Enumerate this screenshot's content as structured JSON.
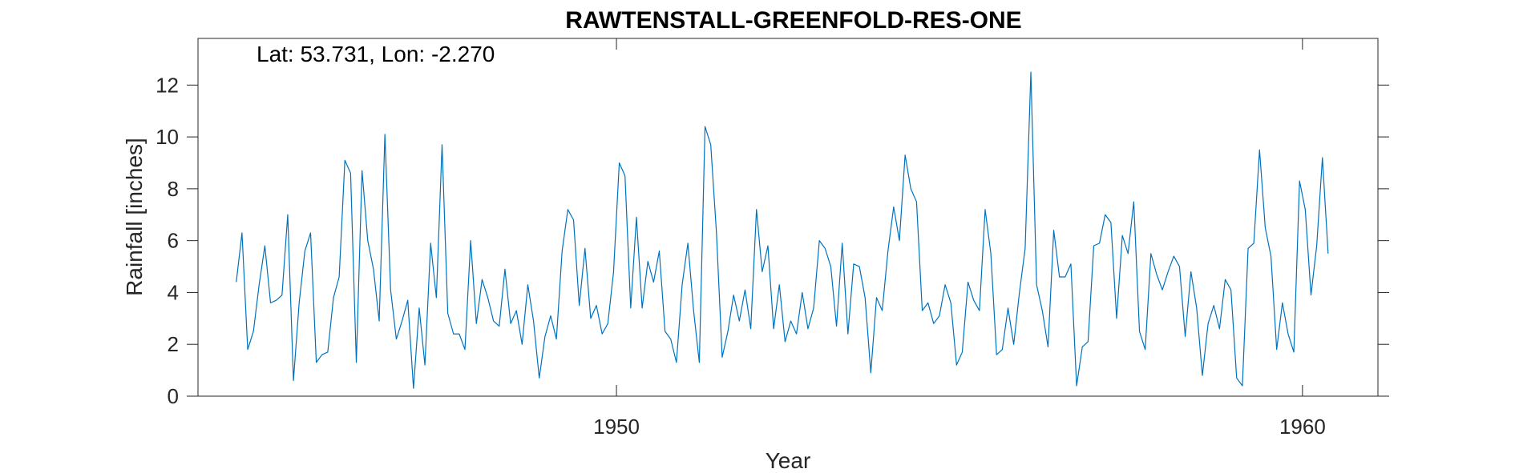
{
  "chart_data": {
    "type": "line",
    "title": "RAWTENSTALL-GREENFOLD-RES-ONE",
    "annotation": "Lat: 53.731, Lon: -2.270",
    "xlabel": "Year",
    "ylabel": "Rainfall [inches]",
    "xlim": [
      1943.9,
      1961.1
    ],
    "ylim": [
      0,
      13.8
    ],
    "x_ticks": [
      1950,
      1960
    ],
    "x_tick_labels": [
      "1950",
      "1960"
    ],
    "y_ticks": [
      0,
      2,
      4,
      6,
      8,
      10,
      12
    ],
    "y_tick_labels": [
      "0",
      "2",
      "4",
      "6",
      "8",
      "10",
      "12"
    ],
    "grid": false,
    "series": [
      {
        "color": "#0072BD",
        "x_start": 1944.458,
        "x_step": 0.08333,
        "values": [
          4.4,
          6.3,
          1.8,
          2.5,
          4.3,
          5.8,
          3.6,
          3.7,
          3.9,
          7.0,
          0.6,
          3.6,
          5.6,
          6.3,
          1.3,
          1.6,
          1.7,
          3.8,
          4.6,
          9.1,
          8.6,
          1.3,
          8.7,
          6.0,
          4.9,
          2.9,
          10.1,
          4.1,
          2.2,
          2.9,
          3.7,
          0.3,
          3.4,
          1.2,
          5.9,
          3.8,
          9.7,
          3.2,
          2.4,
          2.4,
          1.8,
          6.0,
          2.8,
          4.5,
          3.8,
          2.9,
          2.7,
          4.9,
          2.8,
          3.3,
          2.0,
          4.3,
          2.9,
          0.7,
          2.3,
          3.1,
          2.2,
          5.6,
          7.2,
          6.8,
          3.5,
          5.7,
          3.0,
          3.5,
          2.4,
          2.8,
          4.8,
          9.0,
          8.5,
          3.4,
          6.9,
          3.4,
          5.2,
          4.4,
          5.6,
          2.5,
          2.2,
          1.3,
          4.3,
          5.9,
          3.3,
          1.3,
          10.4,
          9.7,
          6.3,
          1.5,
          2.5,
          3.9,
          2.9,
          4.1,
          2.6,
          7.2,
          4.8,
          5.8,
          2.6,
          4.3,
          2.1,
          2.9,
          2.4,
          4.0,
          2.6,
          3.4,
          6.0,
          5.7,
          5.0,
          2.7,
          5.9,
          2.4,
          5.1,
          5.0,
          3.8,
          0.9,
          3.8,
          3.3,
          5.6,
          7.3,
          6.0,
          9.3,
          8.0,
          7.5,
          3.3,
          3.6,
          2.8,
          3.1,
          4.3,
          3.6,
          1.2,
          1.7,
          4.4,
          3.7,
          3.3,
          7.2,
          5.5,
          1.6,
          1.8,
          3.4,
          2.0,
          4.0,
          5.7,
          12.5,
          4.3,
          3.3,
          1.9,
          6.4,
          4.6,
          4.6,
          5.1,
          0.4,
          1.9,
          2.1,
          5.8,
          5.9,
          7.0,
          6.7,
          3.0,
          6.2,
          5.5,
          7.5,
          2.5,
          1.8,
          5.5,
          4.7,
          4.1,
          4.8,
          5.4,
          5.0,
          2.3,
          4.8,
          3.4,
          0.8,
          2.8,
          3.5,
          2.6,
          4.5,
          4.1,
          0.7,
          0.4,
          5.7,
          5.9,
          9.5,
          6.5,
          5.4,
          1.8,
          3.6,
          2.4,
          1.7,
          8.3,
          7.2,
          3.9,
          5.8,
          9.2,
          5.5
        ]
      }
    ]
  }
}
